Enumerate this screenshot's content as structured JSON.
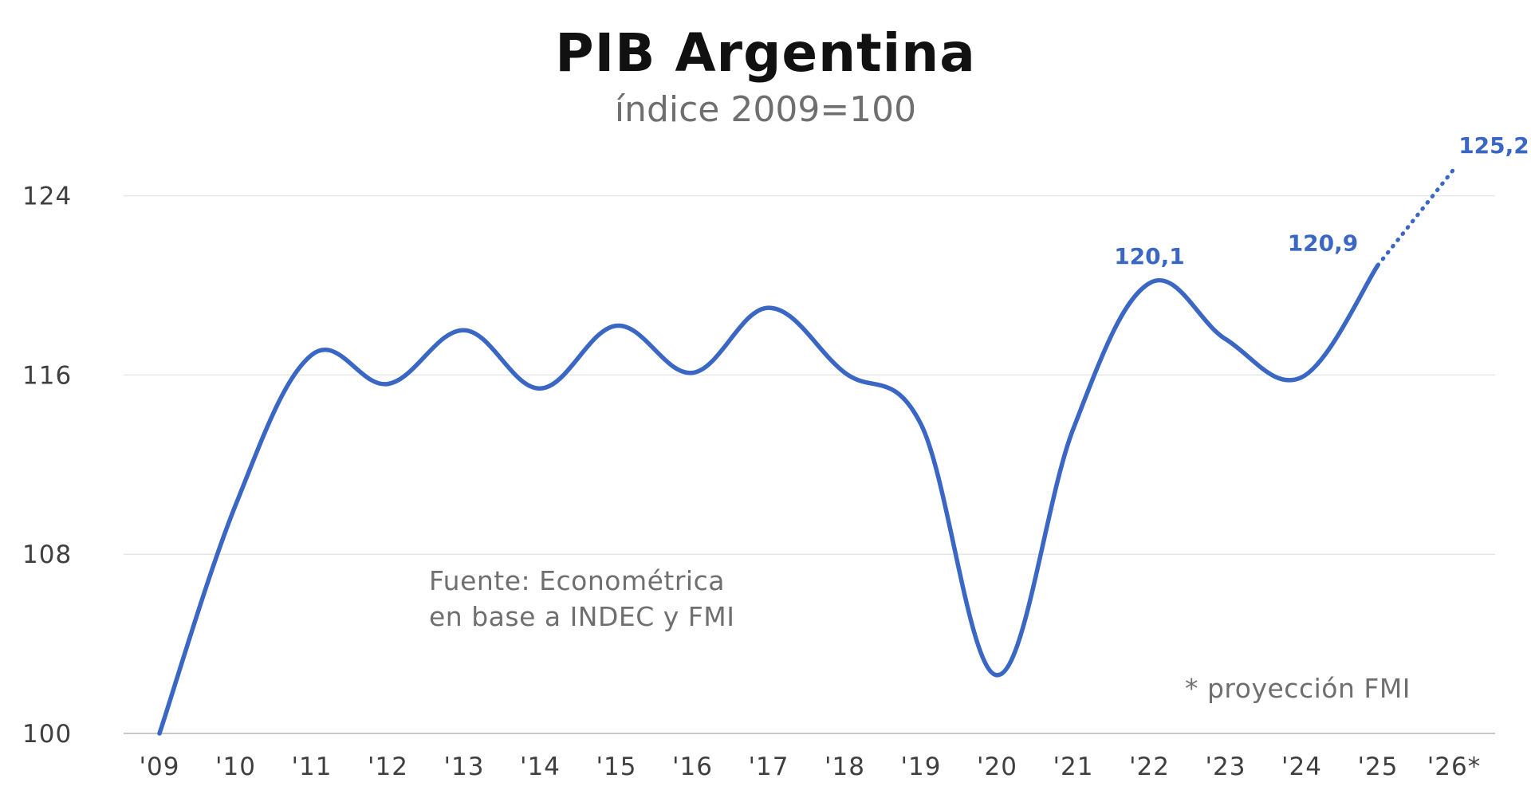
{
  "title": "PIB Argentina",
  "subtitle": "índice 2009=100",
  "source_note": {
    "line1": "Fuente: Econométrica",
    "line2": "en base a INDEC y FMI"
  },
  "footnote": "* proyección FMI",
  "colors": {
    "line": "#3a66c4",
    "grid": "#e6e6e6",
    "axis": "#c8c8c8"
  },
  "chart_data": {
    "type": "line",
    "x": [
      "'09",
      "'10",
      "'11",
      "'12",
      "'13",
      "'14",
      "'15",
      "'16",
      "'17",
      "'18",
      "'19",
      "'20",
      "'21",
      "'22",
      "'23",
      "'24",
      "'25",
      "'26*"
    ],
    "series": [
      {
        "values": [
          100,
          110.2,
          116.9,
          115.6,
          118.0,
          115.4,
          118.2,
          116.1,
          119.0,
          116.1,
          113.8,
          102.6,
          113.6,
          120.1,
          117.6,
          115.9,
          120.9,
          null
        ],
        "style": "solid"
      },
      {
        "values": [
          null,
          null,
          null,
          null,
          null,
          null,
          null,
          null,
          null,
          null,
          null,
          null,
          null,
          null,
          null,
          null,
          120.9,
          125.2
        ],
        "style": "dotted"
      }
    ],
    "data_labels": [
      {
        "x": "'22",
        "value": 120.1,
        "text": "120,1"
      },
      {
        "x": "'25",
        "value": 120.9,
        "text": "120,9"
      },
      {
        "x": "'26*",
        "value": 125.2,
        "text": "125,2"
      }
    ],
    "yticks": [
      100,
      108,
      116,
      124
    ],
    "ylim": [
      100,
      126
    ],
    "grid": true
  }
}
